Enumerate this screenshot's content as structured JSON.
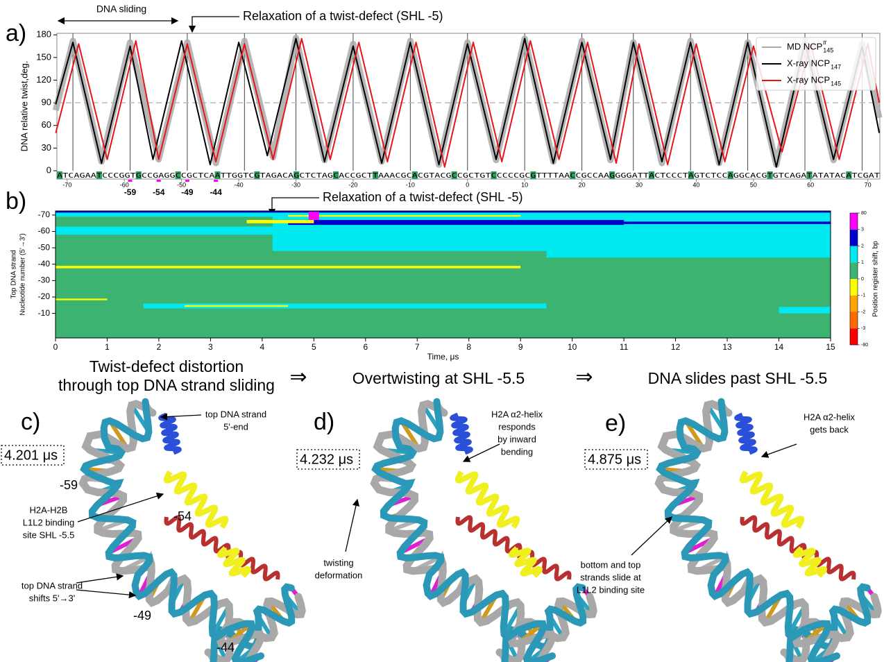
{
  "chart_data": [
    {
      "type": "line",
      "ylabel": "DNA relative twist,deg.",
      "xlim": [
        -71.8,
        72.1
      ],
      "ylim": [
        -11,
        182
      ],
      "yticks": [
        0,
        30,
        60,
        90,
        120,
        150,
        180
      ],
      "xticks": [
        -70,
        -60,
        -50,
        -40,
        -30,
        -20,
        -10,
        0,
        10,
        20,
        30,
        40,
        50,
        60,
        70
      ],
      "ref_line": 90,
      "vlines": [
        -69,
        -59,
        -49,
        -39,
        -30,
        -20,
        -10,
        0,
        10,
        20,
        29,
        39,
        49,
        59,
        69
      ],
      "sequence": "ATCAGAATCCCGGTGCCGAGGCCGCTCAATTGGTCGTAGACAGCTCTAGCACCGCTTAAACGCACGTACGCCGCTGTCCCCCGCGTTTTAACCGCCAAGGGGATTACTCCCTAGTCTCCAGGCACGTGTCAGATATATACATCGAT",
      "highlights": [
        -59,
        -54,
        -49,
        -44
      ],
      "highlight_color": "#ff00ff",
      "legend": "upper right",
      "series": [
        {
          "name": "MD NCP",
          "subscript": "145",
          "superscript": "tt",
          "color": "#a9a9a9",
          "x": [
            -72,
            -69,
            -64,
            -59,
            -54,
            -49,
            -44,
            -39,
            -34,
            -30,
            -25,
            -20,
            -15,
            -10,
            -5,
            0,
            5,
            10,
            15,
            20,
            25,
            29,
            34,
            39,
            44,
            49,
            54,
            59,
            64,
            69,
            72
          ],
          "values": [
            80,
            172,
            12,
            170,
            15,
            170,
            10,
            172,
            18,
            176,
            14,
            168,
            12,
            172,
            8,
            170,
            14,
            175,
            12,
            172,
            14,
            170,
            10,
            172,
            10,
            170,
            8,
            172,
            14,
            168,
            70
          ]
        },
        {
          "name": "X-ray NCP",
          "subscript": "147",
          "color": "#000000",
          "x": [
            -72,
            -69,
            -64,
            -59,
            -55,
            -50,
            -45,
            -40,
            -35,
            -30,
            -25,
            -20,
            -15,
            -10,
            -5,
            0,
            5,
            10,
            15,
            20,
            25,
            29,
            34,
            39,
            44,
            49,
            54,
            59,
            64,
            69,
            72
          ],
          "values": [
            88,
            170,
            10,
            165,
            15,
            172,
            8,
            170,
            20,
            175,
            12,
            165,
            10,
            170,
            8,
            168,
            15,
            175,
            10,
            170,
            15,
            170,
            12,
            170,
            8,
            170,
            5,
            170,
            15,
            165,
            50
          ]
        },
        {
          "name": "X-ray NCP",
          "subscript": "145",
          "color": "#e8141c",
          "x": [
            -72,
            -68,
            -63,
            -58,
            -54,
            -49,
            -44,
            -39,
            -34,
            -29,
            -24,
            -19,
            -14,
            -9,
            -4,
            1,
            6,
            11,
            16,
            21,
            26,
            30,
            35,
            40,
            45,
            50,
            55,
            60,
            65,
            70,
            72
          ],
          "values": [
            50,
            168,
            15,
            172,
            15,
            168,
            12,
            168,
            15,
            175,
            15,
            170,
            12,
            170,
            5,
            170,
            12,
            172,
            15,
            170,
            10,
            168,
            8,
            168,
            12,
            165,
            25,
            168,
            15,
            168,
            90
          ]
        }
      ]
    },
    {
      "type": "heatmap",
      "xlabel": "Time, μs",
      "ylabel": [
        "Top DNA strand",
        "Nucleotide number (5'→3')"
      ],
      "xlim": [
        0,
        15
      ],
      "ylim": [
        5,
        -72.5
      ],
      "xticks": [
        0,
        1,
        2,
        3,
        4,
        5,
        6,
        7,
        8,
        9,
        10,
        11,
        12,
        13,
        14,
        15
      ],
      "yticks": [
        -70,
        -60,
        -50,
        -40,
        -30,
        -20,
        -10
      ],
      "colorbar": {
        "label": "Position register shift, bp",
        "ticks": [
          80,
          3,
          2,
          1,
          0,
          -1,
          -2,
          -3,
          -80
        ],
        "colors": [
          "#ff00ff",
          "#0000cd",
          "#00e8f0",
          "#3cb371",
          "#ffff00",
          "#ffa500",
          "#ff6a00",
          "#ff0000"
        ]
      },
      "regions": [
        {
          "time": [
            0,
            15
          ],
          "nucleotide": [
            5,
            -72.5
          ],
          "shift": 0
        },
        {
          "time": [
            0,
            4.2
          ],
          "nucleotide": [
            -72.5,
            -69
          ],
          "shift": 1.5
        },
        {
          "time": [
            0,
            4.2
          ],
          "nucleotide": [
            -63,
            -58
          ],
          "shift": 1.5
        },
        {
          "time": [
            4.2,
            15
          ],
          "nucleotide": [
            -72,
            -48
          ],
          "shift": 1.5
        },
        {
          "time": [
            9.5,
            15
          ],
          "nucleotide": [
            -48,
            -44
          ],
          "shift": 1.5
        },
        {
          "time": [
            4.5,
            11
          ],
          "nucleotide": [
            -67,
            -64
          ],
          "shift": 2.5
        },
        {
          "time": [
            11,
            15
          ],
          "nucleotide": [
            -66,
            -64.5
          ],
          "shift": 2.5
        },
        {
          "time": [
            0,
            15
          ],
          "nucleotide": [
            -72.5,
            -71.5
          ],
          "shift": 2.5
        },
        {
          "time": [
            3.7,
            5
          ],
          "nucleotide": [
            -67,
            -65
          ],
          "shift": -0.5
        },
        {
          "time": [
            4.5,
            9
          ],
          "nucleotide": [
            -70,
            -69
          ],
          "shift": -0.5
        },
        {
          "time": [
            4.9,
            5.1
          ],
          "nucleotide": [
            -72,
            -67
          ],
          "shift": 5
        },
        {
          "time": [
            0,
            9
          ],
          "nucleotide": [
            -39,
            -37.5
          ],
          "shift": -0.5
        },
        {
          "time": [
            1.7,
            9.5
          ],
          "nucleotide": [
            -16,
            -13
          ],
          "shift": 1.5
        },
        {
          "time": [
            2.5,
            4.5
          ],
          "nucleotide": [
            -15,
            -14
          ],
          "shift": -0.5
        },
        {
          "time": [
            14,
            15
          ],
          "nucleotide": [
            -14,
            -10
          ],
          "shift": 1.5
        },
        {
          "time": [
            0,
            1
          ],
          "nucleotide": [
            -19,
            -18
          ],
          "shift": -0.5
        }
      ]
    }
  ],
  "figure": {
    "panel_labels": [
      "a)",
      "b)",
      "c)",
      "d)",
      "e)"
    ],
    "dna_sliding": "DNA sliding",
    "relaxation_a": "Relaxation of a twist-defect (SHL -5)",
    "relaxation_b": "Relaxation of a twist-defect (SHL -5)",
    "steps": [
      [
        "Twist-defect distortion",
        "through top DNA strand sliding"
      ],
      "Overtwisting at SHL -5.5",
      "DNA slides past SHL -5.5"
    ],
    "arrow": "⇒"
  },
  "panels": [
    {
      "time": "4.201 μs",
      "notes": [
        [
          "top DNA strand",
          "5'-end"
        ],
        [
          "H2A-H2B",
          "L1L2 binding",
          "site SHL -5.5"
        ],
        [
          "top DNA strand",
          "shifts 5'→3'"
        ]
      ],
      "positions": [
        "-59",
        "-54",
        "-49",
        "-44"
      ]
    },
    {
      "time": "4.232 μs",
      "notes": [
        [
          "H2A α2-helix",
          "responds",
          "by inward",
          "bending"
        ],
        [
          "twisting",
          "deformation"
        ]
      ]
    },
    {
      "time": "4.875 μs",
      "notes": [
        [
          "H2A α2-helix",
          "gets back"
        ],
        [
          "bottom and top",
          "strands slide at",
          "L1L2 binding site"
        ]
      ]
    }
  ]
}
